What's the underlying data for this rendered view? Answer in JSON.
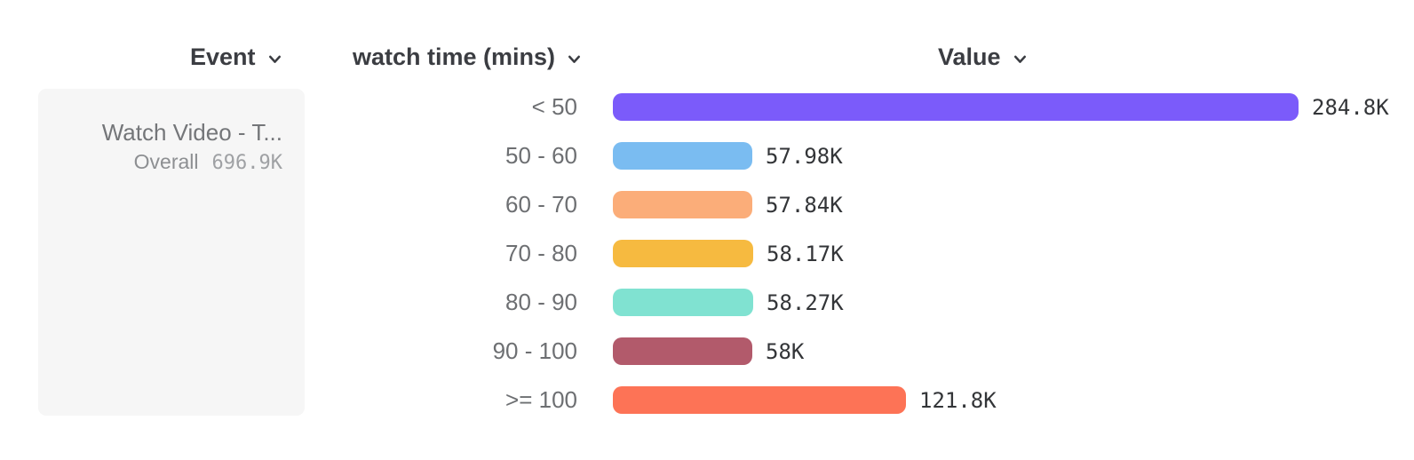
{
  "header": {
    "columns": [
      {
        "id": "event",
        "label": "Event",
        "icon": "chevron-down"
      },
      {
        "id": "breakdown",
        "label": "watch time (mins)",
        "icon": "chevron-down"
      },
      {
        "id": "value",
        "label": "Value",
        "icon": "chevron-down"
      }
    ]
  },
  "event_card": {
    "title": "Watch Video - T...",
    "overall_label": "Overall",
    "overall_value": "696.9K"
  },
  "chart_data": {
    "type": "bar",
    "orientation": "horizontal",
    "title": "",
    "xlabel": "Value",
    "ylabel": "watch time (mins)",
    "categories": [
      "< 50",
      "50 - 60",
      "60 - 70",
      "70 - 80",
      "80 - 90",
      "90 - 100",
      ">= 100"
    ],
    "values": [
      284800,
      57980,
      57840,
      58170,
      58270,
      58000,
      121800
    ],
    "value_labels": [
      "284.8K",
      "57.98K",
      "57.84K",
      "58.17K",
      "58.27K",
      "58K",
      "121.8K"
    ],
    "bar_colors": [
      "#7b5bfa",
      "#7abcf1",
      "#fbad79",
      "#f6ba40",
      "#80e2d1",
      "#b25a6b",
      "#fd7356"
    ],
    "overall_total_label": "Overall",
    "overall_total_value": "696.9K",
    "grid": false,
    "legend": false
  },
  "colors": {
    "card_background": "#f6f6f6",
    "header_text": "#3b3d42",
    "row_label_text": "#6d6f72",
    "value_text": "#333538",
    "muted_text": "#8d8f92"
  }
}
